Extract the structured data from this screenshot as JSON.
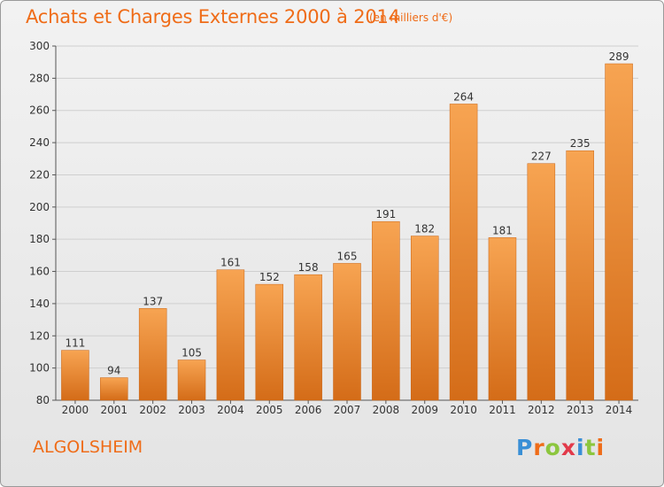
{
  "header": {
    "title": "Achats et Charges Externes 2000 à 2014",
    "subtitle": "(en milliers d'€)"
  },
  "commune": "ALGOLSHEIM",
  "logo": {
    "text": "Proxiti",
    "letter_colors": [
      "#3a8fd6",
      "#ef6c18",
      "#8cc63e",
      "#e23a4a",
      "#3a8fd6",
      "#8cc63e",
      "#ef6c18"
    ]
  },
  "colors": {
    "accent": "#ef6c18",
    "bar_light": "#f7a452",
    "bar_dark": "#d46c18",
    "grid": "#cfcfcf"
  },
  "chart_data": {
    "type": "bar",
    "title": "Achats et Charges Externes 2000 à 2014",
    "subtitle": "(en milliers d'€)",
    "categories": [
      "2000",
      "2001",
      "2002",
      "2003",
      "2004",
      "2005",
      "2006",
      "2007",
      "2008",
      "2009",
      "2010",
      "2011",
      "2012",
      "2013",
      "2014"
    ],
    "values": [
      111,
      94,
      137,
      105,
      161,
      152,
      158,
      165,
      191,
      182,
      264,
      181,
      227,
      235,
      289
    ],
    "ylim": [
      80,
      300
    ],
    "yticks": [
      80,
      100,
      120,
      140,
      160,
      180,
      200,
      220,
      240,
      260,
      280,
      300
    ],
    "grid": true,
    "xlabel": "",
    "ylabel": ""
  }
}
